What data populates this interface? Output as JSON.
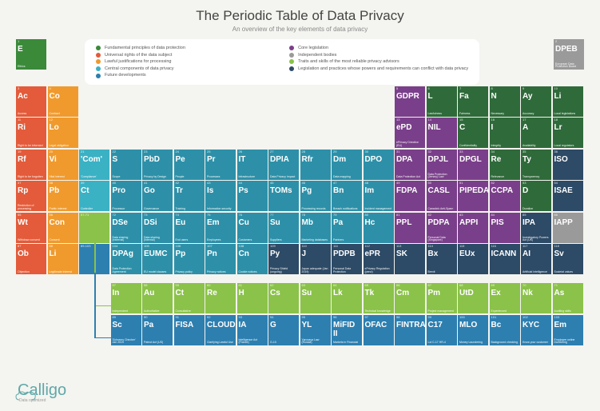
{
  "title": "The Periodic Table of Data Privacy",
  "subtitle": "An overview of the key elements of data privacy",
  "logo": {
    "brand": "Calligo",
    "tagline": "Data optimized"
  },
  "colors": {
    "green": "#3a8a3a",
    "red": "#e35b3a",
    "orange": "#f09a2d",
    "teal": "#3bb1c4",
    "darkteal": "#2d90a8",
    "blue": "#2d7fb0",
    "purple": "#7a3f8a",
    "grey": "#9a9a9a",
    "ltgreen": "#8bc24a",
    "navy": "#2d4a66",
    "darkgreen": "#2f6a3a"
  },
  "legend": [
    {
      "color": "green",
      "label": "Fundamental principles of data protection"
    },
    {
      "color": "purple",
      "label": "Core legislation"
    },
    {
      "color": "red",
      "label": "Universal rights of the data subject"
    },
    {
      "color": "grey",
      "label": "Independent bodies"
    },
    {
      "color": "orange",
      "label": "Lawful justifications for processing"
    },
    {
      "color": "ltgreen",
      "label": "Traits and skills of the most reliable privacy advisors"
    },
    {
      "color": "teal",
      "label": "Central components of data privacy"
    },
    {
      "color": "navy",
      "label": "Legislation and practices whose powers and requirements can conflict with data privacy"
    },
    {
      "color": "blue",
      "label": "Future developments"
    }
  ],
  "ethics": {
    "num": "1",
    "sym": "E",
    "name": "Ethics",
    "color": "green"
  },
  "cells": [
    {
      "r": 2,
      "c": 1,
      "num": "3",
      "sym": "Ac",
      "name": "Access",
      "color": "red"
    },
    {
      "r": 2,
      "c": 2,
      "num": "4",
      "sym": "Co",
      "name": "Contract",
      "color": "orange"
    },
    {
      "r": 2,
      "c": 13,
      "num": "5",
      "sym": "GDPR",
      "name": "",
      "color": "purple"
    },
    {
      "r": 2,
      "c": 14,
      "num": "6",
      "sym": "L",
      "name": "Lawfulness",
      "color": "darkgreen"
    },
    {
      "r": 2,
      "c": 15,
      "num": "7",
      "sym": "Fa",
      "name": "Fairness",
      "color": "darkgreen"
    },
    {
      "r": 2,
      "c": 16,
      "num": "8",
      "sym": "N",
      "name": "Necessary",
      "color": "darkgreen"
    },
    {
      "r": 2,
      "c": 17,
      "num": "9",
      "sym": "Ay",
      "name": "Accuracy",
      "color": "darkgreen"
    },
    {
      "r": 2,
      "c": 18,
      "num": "10",
      "sym": "Li",
      "name": "Local legislations",
      "color": "darkgreen"
    },
    {
      "r": 3,
      "c": 1,
      "num": "11",
      "sym": "Ri",
      "name": "Right to be informed",
      "color": "red"
    },
    {
      "r": 3,
      "c": 2,
      "num": "12",
      "sym": "Lo",
      "name": "Legal obligation",
      "color": "orange"
    },
    {
      "r": 3,
      "c": 13,
      "num": "13",
      "sym": "ePD",
      "name": "ePrivacy Directive (EU)",
      "color": "purple"
    },
    {
      "r": 3,
      "c": 14,
      "num": "14",
      "sym": "NIL",
      "name": "",
      "color": "purple"
    },
    {
      "r": 3,
      "c": 15,
      "num": "15",
      "sym": "C",
      "name": "Confidentiality",
      "color": "darkgreen"
    },
    {
      "r": 3,
      "c": 16,
      "num": "16",
      "sym": "I",
      "name": "Integrity",
      "color": "darkgreen"
    },
    {
      "r": 3,
      "c": 17,
      "num": "17",
      "sym": "A",
      "name": "Availability",
      "color": "darkgreen"
    },
    {
      "r": 3,
      "c": 18,
      "num": "18",
      "sym": "Lr",
      "name": "Local regulators",
      "color": "darkgreen"
    },
    {
      "r": 4,
      "c": 1,
      "num": "19",
      "sym": "Rf",
      "name": "Right to be forgotten",
      "color": "red"
    },
    {
      "r": 4,
      "c": 2,
      "num": "20",
      "sym": "Vi",
      "name": "Vital interest",
      "color": "orange"
    },
    {
      "r": 4,
      "c": 3,
      "num": "21",
      "sym": "'Com'",
      "name": "'Compliance'",
      "color": "teal"
    },
    {
      "r": 4,
      "c": 4,
      "num": "22",
      "sym": "S",
      "name": "Scope",
      "color": "darkteal"
    },
    {
      "r": 4,
      "c": 5,
      "num": "23",
      "sym": "PbD",
      "name": "Privacy by Design",
      "color": "darkteal"
    },
    {
      "r": 4,
      "c": 6,
      "num": "24",
      "sym": "Pe",
      "name": "People",
      "color": "darkteal"
    },
    {
      "r": 4,
      "c": 7,
      "num": "25",
      "sym": "Pr",
      "name": "Processes",
      "color": "darkteal"
    },
    {
      "r": 4,
      "c": 8,
      "num": "26",
      "sym": "IT",
      "name": "Infrastructure",
      "color": "darkteal"
    },
    {
      "r": 4,
      "c": 9,
      "num": "27",
      "sym": "DPIA",
      "name": "Data Privacy Impact",
      "color": "darkteal"
    },
    {
      "r": 4,
      "c": 10,
      "num": "28",
      "sym": "Rfr",
      "name": "",
      "color": "darkteal"
    },
    {
      "r": 4,
      "c": 11,
      "num": "29",
      "sym": "Dm",
      "name": "Data mapping",
      "color": "darkteal"
    },
    {
      "r": 4,
      "c": 12,
      "num": "30",
      "sym": "DPO",
      "name": "",
      "color": "darkteal"
    },
    {
      "r": 4,
      "c": 13,
      "num": "31",
      "sym": "DPA",
      "name": "Data Protection Act",
      "color": "purple"
    },
    {
      "r": 4,
      "c": 14,
      "num": "32",
      "sym": "DPJL",
      "name": "Data Protection (Jersey) Law",
      "color": "purple"
    },
    {
      "r": 4,
      "c": 15,
      "num": "33",
      "sym": "DPGL",
      "name": "",
      "color": "purple"
    },
    {
      "r": 4,
      "c": 16,
      "num": "34",
      "sym": "Re",
      "name": "Relevance",
      "color": "darkgreen"
    },
    {
      "r": 4,
      "c": 17,
      "num": "35",
      "sym": "Ty",
      "name": "Transparency",
      "color": "darkgreen"
    },
    {
      "r": 4,
      "c": 18,
      "num": "36",
      "sym": "ISO",
      "name": "",
      "color": "navy"
    },
    {
      "r": 5,
      "c": 1,
      "num": "37",
      "sym": "Rp",
      "name": "Restriction of processing",
      "color": "red"
    },
    {
      "r": 5,
      "c": 2,
      "num": "38",
      "sym": "Pb",
      "name": "Public interest",
      "color": "orange"
    },
    {
      "r": 5,
      "c": 3,
      "num": "39",
      "sym": "Ct",
      "name": "Controller",
      "color": "teal"
    },
    {
      "r": 5,
      "c": 4,
      "num": "40",
      "sym": "Pro",
      "name": "Processor",
      "color": "darkteal"
    },
    {
      "r": 5,
      "c": 5,
      "num": "41",
      "sym": "Go",
      "name": "Governance",
      "color": "darkteal"
    },
    {
      "r": 5,
      "c": 6,
      "num": "42",
      "sym": "Tr",
      "name": "Training",
      "color": "darkteal"
    },
    {
      "r": 5,
      "c": 7,
      "num": "43",
      "sym": "Is",
      "name": "Information security",
      "color": "darkteal"
    },
    {
      "r": 5,
      "c": 8,
      "num": "44",
      "sym": "Ps",
      "name": "",
      "color": "darkteal"
    },
    {
      "r": 5,
      "c": 9,
      "num": "45",
      "sym": "TOMs",
      "name": "",
      "color": "darkteal"
    },
    {
      "r": 5,
      "c": 10,
      "num": "46",
      "sym": "Pg",
      "name": "Processing records",
      "color": "darkteal"
    },
    {
      "r": 5,
      "c": 11,
      "num": "47",
      "sym": "Bn",
      "name": "Breach notifications",
      "color": "darkteal"
    },
    {
      "r": 5,
      "c": 12,
      "num": "48",
      "sym": "Im",
      "name": "Incident management",
      "color": "darkteal"
    },
    {
      "r": 5,
      "c": 13,
      "num": "49",
      "sym": "FDPA",
      "name": "",
      "color": "purple"
    },
    {
      "r": 5,
      "c": 14,
      "num": "50",
      "sym": "CASL",
      "name": "Canada's Anti-Spam",
      "color": "purple"
    },
    {
      "r": 5,
      "c": 15,
      "num": "51",
      "sym": "PIPEDA",
      "name": "",
      "color": "purple"
    },
    {
      "r": 5,
      "c": 16,
      "num": "52",
      "sym": "CCPA",
      "name": "",
      "color": "purple"
    },
    {
      "r": 5,
      "c": 17,
      "num": "53",
      "sym": "D",
      "name": "Duration",
      "color": "darkgreen"
    },
    {
      "r": 5,
      "c": 18,
      "num": "54",
      "sym": "ISAE",
      "name": "",
      "color": "navy"
    },
    {
      "r": 6,
      "c": 1,
      "num": "55",
      "sym": "Wt",
      "name": "Withdraw consent",
      "color": "red"
    },
    {
      "r": 6,
      "c": 2,
      "num": "56",
      "sym": "Con",
      "name": "Consent",
      "color": "orange"
    },
    {
      "r": 6,
      "c": 3,
      "num": "57-71",
      "sym": "",
      "name": "",
      "color": "ltgreen"
    },
    {
      "r": 6,
      "c": 4,
      "num": "72",
      "sym": "DSe",
      "name": "Data sharing (external)",
      "color": "darkteal"
    },
    {
      "r": 6,
      "c": 5,
      "num": "73",
      "sym": "DSi",
      "name": "Data sharing (internal)",
      "color": "darkteal"
    },
    {
      "r": 6,
      "c": 6,
      "num": "74",
      "sym": "Eu",
      "name": "End users",
      "color": "darkteal"
    },
    {
      "r": 6,
      "c": 7,
      "num": "75",
      "sym": "Em",
      "name": "Employees",
      "color": "darkteal"
    },
    {
      "r": 6,
      "c": 8,
      "num": "76",
      "sym": "Cu",
      "name": "Customers",
      "color": "darkteal"
    },
    {
      "r": 6,
      "c": 9,
      "num": "77",
      "sym": "Su",
      "name": "Suppliers",
      "color": "darkteal"
    },
    {
      "r": 6,
      "c": 10,
      "num": "78",
      "sym": "Mb",
      "name": "Marketing databases",
      "color": "darkteal"
    },
    {
      "r": 6,
      "c": 11,
      "num": "79",
      "sym": "Pa",
      "name": "Partners",
      "color": "darkteal"
    },
    {
      "r": 6,
      "c": 12,
      "num": "80",
      "sym": "Hc",
      "name": "",
      "color": "darkteal"
    },
    {
      "r": 6,
      "c": 13,
      "num": "81",
      "sym": "PPL",
      "name": "",
      "color": "purple"
    },
    {
      "r": 6,
      "c": 14,
      "num": "82",
      "sym": "PDPA",
      "name": "Personal Data (Singapore)",
      "color": "purple"
    },
    {
      "r": 6,
      "c": 15,
      "num": "83",
      "sym": "APPI",
      "name": "",
      "color": "purple"
    },
    {
      "r": 6,
      "c": 16,
      "num": "84",
      "sym": "PIS",
      "name": "",
      "color": "purple"
    },
    {
      "r": 6,
      "c": 17,
      "num": "85",
      "sym": "IPA",
      "name": "Investigatory Powers Act (UK)",
      "color": "navy"
    },
    {
      "r": 6,
      "c": 18,
      "num": "86",
      "sym": "IAPP",
      "name": "",
      "color": "grey"
    },
    {
      "r": 7,
      "c": 1,
      "num": "87",
      "sym": "Ob",
      "name": "Objection",
      "color": "red"
    },
    {
      "r": 7,
      "c": 2,
      "num": "88",
      "sym": "Li",
      "name": "Legitimate interest",
      "color": "orange"
    },
    {
      "r": 7,
      "c": 3,
      "num": "89-103",
      "sym": "",
      "name": "",
      "color": "blue"
    },
    {
      "r": 7,
      "c": 4,
      "num": "104",
      "sym": "DPAg",
      "name": "Data Protection Agreement",
      "color": "darkteal"
    },
    {
      "r": 7,
      "c": 5,
      "num": "105",
      "sym": "EUMC",
      "name": "EU model clauses",
      "color": "darkteal"
    },
    {
      "r": 7,
      "c": 6,
      "num": "106",
      "sym": "Pp",
      "name": "Privacy policy",
      "color": "darkteal"
    },
    {
      "r": 7,
      "c": 7,
      "num": "107",
      "sym": "Pn",
      "name": "Privacy notices",
      "color": "darkteal"
    },
    {
      "r": 7,
      "c": 8,
      "num": "108",
      "sym": "Cn",
      "name": "Cookie notices",
      "color": "darkteal"
    },
    {
      "r": 7,
      "c": 9,
      "num": "109",
      "sym": "Py",
      "name": "Privacy Shield (ongoing)",
      "color": "navy"
    },
    {
      "r": 7,
      "c": 10,
      "num": "110",
      "sym": "J",
      "name": "Japan adequate (Jan 2019)",
      "color": "navy"
    },
    {
      "r": 7,
      "c": 11,
      "num": "111",
      "sym": "PDPB",
      "name": "Personal Data Protection",
      "color": "navy"
    },
    {
      "r": 7,
      "c": 12,
      "num": "112",
      "sym": "ePR",
      "name": "ePrivacy Regulation (pend)",
      "color": "navy"
    },
    {
      "r": 7,
      "c": 13,
      "num": "113",
      "sym": "SK",
      "name": "",
      "color": "navy"
    },
    {
      "r": 7,
      "c": 14,
      "num": "114",
      "sym": "Bx",
      "name": "Brexit",
      "color": "navy"
    },
    {
      "r": 7,
      "c": 15,
      "num": "115",
      "sym": "EUx",
      "name": "",
      "color": "navy"
    },
    {
      "r": 7,
      "c": 16,
      "num": "116",
      "sym": "ICANN",
      "name": "",
      "color": "navy"
    },
    {
      "r": 7,
      "c": 17,
      "num": "117",
      "sym": "AI",
      "name": "Artificial Intelligence",
      "color": "navy"
    },
    {
      "r": 7,
      "c": 18,
      "num": "118",
      "sym": "Sv",
      "name": "Societal values",
      "color": "navy"
    },
    {
      "r": 9,
      "c": 4,
      "num": "57",
      "sym": "In",
      "name": "Independent",
      "color": "ltgreen"
    },
    {
      "r": 9,
      "c": 5,
      "num": "58",
      "sym": "Au",
      "name": "Authoritative",
      "color": "ltgreen"
    },
    {
      "r": 9,
      "c": 6,
      "num": "59",
      "sym": "Ct",
      "name": "Consultative",
      "color": "ltgreen"
    },
    {
      "r": 9,
      "c": 7,
      "num": "60",
      "sym": "Re",
      "name": "",
      "color": "ltgreen"
    },
    {
      "r": 9,
      "c": 8,
      "num": "61",
      "sym": "H",
      "name": "",
      "color": "ltgreen"
    },
    {
      "r": 9,
      "c": 9,
      "num": "62",
      "sym": "Cs",
      "name": "",
      "color": "ltgreen"
    },
    {
      "r": 9,
      "c": 10,
      "num": "63",
      "sym": "Su",
      "name": "",
      "color": "ltgreen"
    },
    {
      "r": 9,
      "c": 11,
      "num": "64",
      "sym": "Lk",
      "name": "",
      "color": "ltgreen"
    },
    {
      "r": 9,
      "c": 12,
      "num": "65",
      "sym": "Tk",
      "name": "Technical knowledge",
      "color": "ltgreen"
    },
    {
      "r": 9,
      "c": 13,
      "num": "66",
      "sym": "Cm",
      "name": "",
      "color": "ltgreen"
    },
    {
      "r": 9,
      "c": 14,
      "num": "67",
      "sym": "Pm",
      "name": "Project management",
      "color": "ltgreen"
    },
    {
      "r": 9,
      "c": 15,
      "num": "68",
      "sym": "UtD",
      "name": "",
      "color": "ltgreen"
    },
    {
      "r": 9,
      "c": 16,
      "num": "69",
      "sym": "Ex",
      "name": "Experienced",
      "color": "ltgreen"
    },
    {
      "r": 9,
      "c": 17,
      "num": "70",
      "sym": "Nk",
      "name": "",
      "color": "ltgreen"
    },
    {
      "r": 9,
      "c": 18,
      "num": "71",
      "sym": "As",
      "name": "Auditing skills",
      "color": "ltgreen"
    },
    {
      "r": 10,
      "c": 4,
      "num": "89",
      "sym": "Sc",
      "name": "'Schrems Checker' Jan 2019",
      "color": "blue"
    },
    {
      "r": 10,
      "c": 5,
      "num": "90",
      "sym": "Pa",
      "name": "Patriot Act (US)",
      "color": "blue"
    },
    {
      "r": 10,
      "c": 6,
      "num": "91",
      "sym": "FISA",
      "name": "",
      "color": "blue"
    },
    {
      "r": 10,
      "c": 7,
      "num": "92",
      "sym": "CLOUD",
      "name": "Clarifying Lawful Use",
      "color": "blue"
    },
    {
      "r": 10,
      "c": 8,
      "num": "93",
      "sym": "IA",
      "name": "Intelligence Act (France)",
      "color": "blue"
    },
    {
      "r": 10,
      "c": 9,
      "num": "94",
      "sym": "G",
      "name": "G-10",
      "color": "blue"
    },
    {
      "r": 10,
      "c": 10,
      "num": "95",
      "sym": "YL",
      "name": "Yarovaya Law (Russia)",
      "color": "blue"
    },
    {
      "r": 10,
      "c": 11,
      "num": "96",
      "sym": "MiFID II",
      "name": "Markets in Financial",
      "color": "blue"
    },
    {
      "r": 10,
      "c": 12,
      "num": "97",
      "sym": "OFAC",
      "name": "",
      "color": "blue"
    },
    {
      "r": 10,
      "c": 13,
      "num": "98",
      "sym": "FINTRAC",
      "name": "",
      "color": "blue"
    },
    {
      "r": 10,
      "c": 14,
      "num": "99",
      "sym": "C17",
      "name": "Loi C‑17 HR‑4",
      "color": "blue"
    },
    {
      "r": 10,
      "c": 15,
      "num": "100",
      "sym": "MLO",
      "name": "Money Laundering",
      "color": "blue"
    },
    {
      "r": 10,
      "c": 16,
      "num": "101",
      "sym": "Bc",
      "name": "Background checking",
      "color": "blue"
    },
    {
      "r": 10,
      "c": 17,
      "num": "102",
      "sym": "KYC",
      "name": "Know your customer",
      "color": "blue"
    },
    {
      "r": 10,
      "c": 18,
      "num": "103",
      "sym": "Em",
      "name": "Employee online monitoring",
      "color": "blue"
    }
  ],
  "dpeb": {
    "num": "2",
    "sym": "DPEB",
    "name": "European Data Protection Board",
    "color": "grey"
  }
}
